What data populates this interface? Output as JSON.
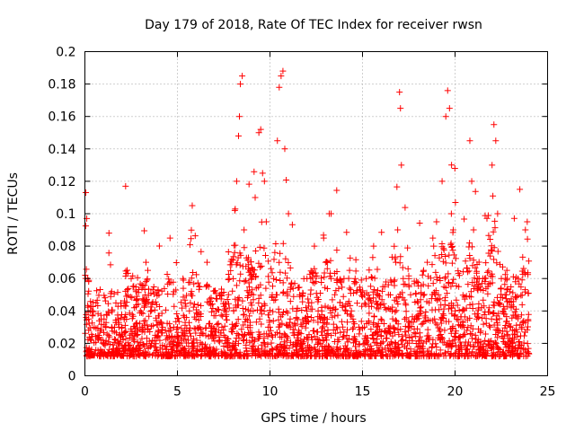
{
  "chart_data": {
    "type": "scatter",
    "title": "Day 179 of 2018, Rate Of TEC Index for receiver rwsn",
    "xlabel": "GPS time / hours",
    "ylabel": "ROTI / TECUs",
    "xlim": [
      0,
      25
    ],
    "ylim": [
      0,
      0.2
    ],
    "x_ticks": [
      0,
      5,
      10,
      15,
      20,
      25
    ],
    "x_tick_labels": [
      "0",
      "5",
      "10",
      "15",
      "20",
      "25"
    ],
    "y_ticks": [
      0,
      0.02,
      0.04,
      0.06,
      0.08,
      0.1,
      0.12,
      0.14,
      0.16,
      0.18,
      0.2
    ],
    "y_tick_labels": [
      "0",
      "0.02",
      "0.04",
      "0.06",
      "0.08",
      "0.1",
      "0.12",
      "0.14",
      "0.16",
      "0.18",
      "0.2"
    ],
    "grid": true,
    "marker": "+",
    "series": [
      {
        "name": "ROTI",
        "color": "#ff0000",
        "x": [
          0.05,
          0.1,
          0.15,
          0.3,
          0.5,
          0.7,
          1.0,
          1.3,
          1.6,
          1.9,
          2.2,
          2.5,
          2.8,
          3.1,
          3.4,
          3.8,
          4.2,
          4.6,
          5.0,
          5.4,
          5.8,
          6.2,
          6.6,
          7.0,
          7.4,
          7.8,
          8.1,
          8.2,
          8.3,
          8.35,
          8.4,
          8.5,
          8.6,
          8.8,
          9.0,
          9.2,
          9.4,
          9.5,
          9.6,
          9.7,
          9.8,
          10.0,
          10.2,
          10.4,
          10.5,
          10.6,
          10.7,
          10.8,
          11.0,
          11.3,
          11.6,
          12.0,
          12.4,
          12.8,
          13.2,
          13.6,
          14.0,
          14.4,
          14.8,
          15.2,
          15.6,
          16.0,
          16.4,
          16.8,
          17.0,
          17.05,
          17.1,
          17.5,
          18.0,
          18.5,
          19.0,
          19.3,
          19.5,
          19.6,
          19.7,
          19.8,
          20.0,
          20.5,
          20.8,
          20.9,
          21.0,
          21.5,
          22.0,
          22.1,
          22.2,
          22.3,
          22.5,
          23.0,
          23.5,
          23.8,
          23.9,
          0.2,
          0.6,
          1.1,
          2.0,
          3.0,
          4.0,
          5.1,
          6.0,
          7.1,
          8.0,
          9.1,
          10.1,
          11.1,
          12.1,
          13.1,
          14.1,
          15.1,
          16.1,
          17.2,
          18.1,
          19.1,
          20.1,
          21.1,
          22.4,
          23.1,
          0.4,
          1.5,
          2.6,
          3.6,
          4.8,
          5.7,
          6.8,
          7.6,
          8.7,
          9.9,
          11.5,
          12.6,
          13.5,
          14.6,
          15.5,
          16.6,
          17.6,
          18.6,
          19.4,
          20.4,
          21.6,
          22.7,
          23.6,
          1.8,
          3.3,
          5.3,
          7.3,
          12.2,
          13.0,
          14.3,
          16.2,
          18.3,
          20.2,
          21.3,
          22.8,
          23.4,
          12.9,
          13.3,
          16.9,
          18.8,
          19.9
        ],
        "y": [
          0.113,
          0.097,
          0.06,
          0.04,
          0.03,
          0.025,
          0.02,
          0.088,
          0.03,
          0.025,
          0.117,
          0.06,
          0.025,
          0.03,
          0.065,
          0.025,
          0.03,
          0.085,
          0.03,
          0.025,
          0.105,
          0.03,
          0.07,
          0.025,
          0.03,
          0.06,
          0.102,
          0.12,
          0.148,
          0.16,
          0.18,
          0.185,
          0.09,
          0.03,
          0.06,
          0.11,
          0.15,
          0.152,
          0.125,
          0.12,
          0.095,
          0.03,
          0.06,
          0.145,
          0.178,
          0.185,
          0.188,
          0.14,
          0.1,
          0.025,
          0.05,
          0.06,
          0.08,
          0.04,
          0.1,
          0.03,
          0.06,
          0.04,
          0.03,
          0.06,
          0.08,
          0.035,
          0.05,
          0.07,
          0.175,
          0.165,
          0.13,
          0.06,
          0.045,
          0.07,
          0.095,
          0.12,
          0.16,
          0.176,
          0.165,
          0.1,
          0.04,
          0.03,
          0.145,
          0.12,
          0.09,
          0.06,
          0.13,
          0.155,
          0.145,
          0.1,
          0.06,
          0.03,
          0.115,
          0.09,
          0.095,
          0.015,
          0.045,
          0.02,
          0.03,
          0.04,
          0.05,
          0.02,
          0.035,
          0.04,
          0.02,
          0.05,
          0.025,
          0.03,
          0.045,
          0.035,
          0.04,
          0.05,
          0.055,
          0.06,
          0.04,
          0.05,
          0.035,
          0.025,
          0.045,
          0.02,
          0.04,
          0.015,
          0.055,
          0.02,
          0.03,
          0.045,
          0.025,
          0.02,
          0.035,
          0.03,
          0.02,
          0.04,
          0.05,
          0.06,
          0.045,
          0.04,
          0.05,
          0.045,
          0.055,
          0.04,
          0.06,
          0.05,
          0.03,
          0.02,
          0.07,
          0.06,
          0.05,
          0.06,
          0.07,
          0.065,
          0.055,
          0.065,
          0.055,
          0.06,
          0.065,
          0.06,
          0.085,
          0.1,
          0.09,
          0.085,
          0.09
        ]
      }
    ]
  }
}
